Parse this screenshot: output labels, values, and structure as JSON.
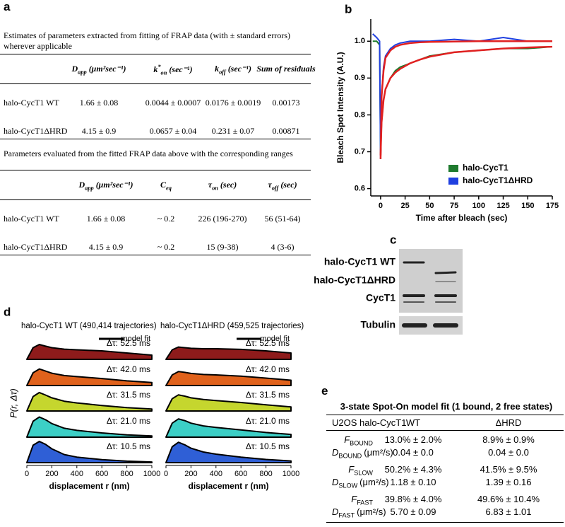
{
  "panel_a": {
    "label": "a",
    "table1": {
      "caption": "Estimates of parameters extracted from fitting of FRAP data (with ± standard errors) wherever applicable",
      "headers": [
        {
          "symbol": "D",
          "sub": "app",
          "unit": "(μm²sec⁻¹)"
        },
        {
          "symbol": "k",
          "sup": "*",
          "sub": "on",
          "unit": "(sec⁻¹)"
        },
        {
          "symbol": "k",
          "sub": "off",
          "unit": "(sec⁻¹)"
        },
        {
          "symbol": "Sum of residuals"
        }
      ],
      "rows": [
        [
          "halo-CycT1 WT",
          "1.66 ± 0.08",
          "0.0044 ± 0.0007",
          "0.0176 ± 0.0019",
          "0.00173"
        ],
        [
          "halo-CycT1ΔHRD",
          "4.15 ± 0.9",
          "0.0657 ± 0.04",
          "0.231 ± 0.07",
          "0.00871"
        ]
      ]
    },
    "table2": {
      "caption": "Parameters evaluated from the fitted FRAP data above with the corresponding ranges",
      "headers": [
        {
          "symbol": "D",
          "sub": "app",
          "unit": "(μm²sec⁻¹)"
        },
        {
          "symbol": "C",
          "sub": "eq"
        },
        {
          "symbol": "τ",
          "sub": "on",
          "unit": "(sec)"
        },
        {
          "symbol": "τ",
          "sub": "off",
          "unit": "(sec)"
        }
      ],
      "rows": [
        [
          "halo-CycT1 WT",
          "1.66 ± 0.08",
          "~ 0.2",
          "226 (196-270)",
          "56 (51-64)"
        ],
        [
          "halo-CycT1ΔHRD",
          "4.15 ± 0.9",
          "~ 0.2",
          "15 (9-38)",
          "4 (3-6)"
        ]
      ]
    }
  },
  "chart_data": {
    "type": "line",
    "label": "b",
    "xlabel": "Time after bleach (sec)",
    "ylabel": "Bleach Spot Intensity (A.U.)",
    "x": [
      -8,
      -4,
      -1,
      0,
      1,
      3,
      5,
      10,
      15,
      20,
      30,
      40,
      50,
      75,
      100,
      125,
      150,
      175
    ],
    "xlim": [
      -10,
      175
    ],
    "xticks": [
      0,
      25,
      50,
      75,
      100,
      125,
      150,
      175
    ],
    "ylim": [
      0.58,
      1.06
    ],
    "yticks": [
      0.6,
      0.7,
      0.8,
      0.9,
      {
        "value": 1.0,
        "label": "1.0"
      }
    ],
    "legend": "lower right",
    "series": [
      {
        "name": "halo-CycT1",
        "color": "#1e7a2e",
        "values": [
          1.0,
          1.0,
          0.99,
          0.69,
          0.78,
          0.84,
          0.87,
          0.9,
          0.92,
          0.93,
          0.94,
          0.95,
          0.96,
          0.97,
          0.975,
          0.98,
          0.98,
          0.985
        ]
      },
      {
        "name": "halo-CycT1ΔHRD",
        "color": "#1f3fe0",
        "values": [
          1.02,
          1.01,
          1.0,
          0.68,
          0.85,
          0.93,
          0.96,
          0.98,
          0.99,
          0.995,
          1.0,
          1.0,
          1.0,
          1.005,
          1.0,
          1.01,
          1.0,
          1.0
        ]
      },
      {
        "color": "#e02020",
        "values": [
          null,
          null,
          null,
          0.69,
          0.78,
          0.84,
          0.87,
          0.9,
          0.915,
          0.925,
          0.94,
          0.95,
          0.958,
          0.97,
          0.975,
          0.98,
          0.983,
          0.985
        ]
      },
      {
        "color": "#e02020",
        "values": [
          null,
          null,
          null,
          0.68,
          0.85,
          0.92,
          0.955,
          0.975,
          0.985,
          0.99,
          0.995,
          0.997,
          0.998,
          0.999,
          1.0,
          1.0,
          1.0,
          1.0
        ]
      }
    ]
  },
  "panel_c": {
    "label": "c",
    "bands": [
      "halo-CycT1 WT",
      "halo-CycT1ΔHRD",
      "CycT1",
      "Tubulin"
    ]
  },
  "panel_d": {
    "label": "d",
    "titles": [
      "halo-CycT1 WT (490,414 trajectories)",
      "halo-CycT1ΔHRD (459,525 trajectories)"
    ],
    "legend": "model fit",
    "ylabel": "P(r, Δτ)",
    "xlabel": "displacement r (nm)",
    "xlim": [
      0,
      1000
    ],
    "xticks": [
      0,
      200,
      400,
      600,
      800,
      1000
    ],
    "x": [
      0,
      50,
      100,
      150,
      200,
      300,
      400,
      600,
      800,
      1000
    ],
    "delays": [
      {
        "label": "Δτ: 52.5 ms",
        "color": "#8e1b1b"
      },
      {
        "label": "Δτ: 42.0 ms",
        "color": "#e0621c"
      },
      {
        "label": "Δτ: 31.5 ms",
        "color": "#c5d62e"
      },
      {
        "label": "Δτ: 21.0 ms",
        "color": "#3ccfc6"
      },
      {
        "label": "Δτ: 10.5 ms",
        "color": "#2f5fd6"
      }
    ],
    "curves": [
      [
        [
          0,
          0.55,
          0.7,
          0.62,
          0.55,
          0.48,
          0.45,
          0.4,
          0.3,
          0.2
        ],
        [
          0,
          0.6,
          0.78,
          0.68,
          0.58,
          0.47,
          0.42,
          0.33,
          0.22,
          0.14
        ],
        [
          0,
          0.68,
          0.87,
          0.75,
          0.62,
          0.46,
          0.38,
          0.26,
          0.16,
          0.09
        ],
        [
          0,
          0.75,
          0.95,
          0.82,
          0.64,
          0.42,
          0.32,
          0.2,
          0.11,
          0.06
        ],
        [
          0,
          0.82,
          1.0,
          0.86,
          0.65,
          0.38,
          0.26,
          0.14,
          0.07,
          0.03
        ]
      ],
      [
        [
          0,
          0.45,
          0.58,
          0.55,
          0.52,
          0.5,
          0.5,
          0.47,
          0.4,
          0.3
        ],
        [
          0,
          0.5,
          0.66,
          0.62,
          0.57,
          0.52,
          0.5,
          0.44,
          0.35,
          0.25
        ],
        [
          0,
          0.58,
          0.76,
          0.7,
          0.62,
          0.54,
          0.49,
          0.4,
          0.29,
          0.19
        ],
        [
          0,
          0.66,
          0.86,
          0.78,
          0.66,
          0.53,
          0.46,
          0.34,
          0.22,
          0.13
        ],
        [
          0,
          0.75,
          0.96,
          0.84,
          0.68,
          0.5,
          0.4,
          0.26,
          0.15,
          0.08
        ]
      ]
    ]
  },
  "panel_e": {
    "label": "e",
    "title": "3-state Spot-On model fit (1 bound, 2 free states)",
    "header": [
      "U2OS halo-CycT1",
      "WT",
      "ΔHRD"
    ],
    "rows": [
      {
        "label": {
          "symbol": "F",
          "sub": "BOUND"
        },
        "values": [
          "13.0% ± 2.0%",
          "8.9% ± 0.9%"
        ]
      },
      {
        "label": {
          "symbol": "D",
          "sub": "BOUND",
          "unit": "(μm²/s)"
        },
        "values": [
          "0.04 ± 0.0",
          "0.04 ± 0.0"
        ]
      },
      {
        "label": {
          "symbol": "F",
          "sub": "SLOW"
        },
        "values": [
          "50.2% ± 4.3%",
          "41.5% ± 9.5%"
        ]
      },
      {
        "label": {
          "symbol": "D",
          "sub": "SLOW",
          "unit": "(μm²/s)"
        },
        "values": [
          "1.18 ± 0.10",
          "1.39 ± 0.16"
        ]
      },
      {
        "label": {
          "symbol": "F",
          "sub": "FAST"
        },
        "values": [
          "39.8% ± 4.0%",
          "49.6% ± 10.4%"
        ]
      },
      {
        "label": {
          "symbol": "D",
          "sub": "FAST",
          "unit": "(μm²/s)"
        },
        "values": [
          "5.70 ± 0.09",
          "6.83 ± 1.01"
        ]
      }
    ]
  }
}
